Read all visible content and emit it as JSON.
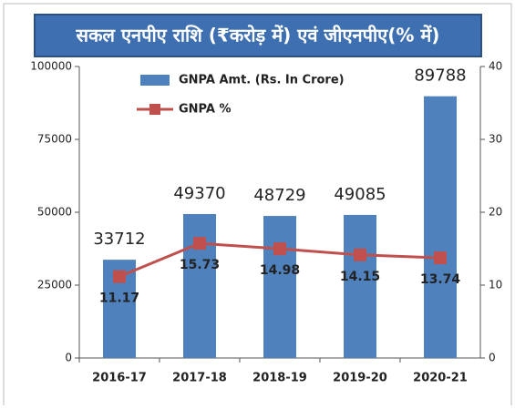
{
  "chart_data": {
    "type": "bar",
    "title": "सकल एनपीए राशि (₹करोड़ में) एवं जीएनपीए(% में)",
    "categories": [
      "2016-17",
      "2017-18",
      "2018-19",
      "2019-20",
      "2020-21"
    ],
    "series": [
      {
        "name": "GNPA Amt. (Rs. In Crore)",
        "color": "#4f81bd",
        "type": "bar",
        "values": [
          33712,
          49370,
          48729,
          49085,
          89788
        ]
      },
      {
        "name": "GNPA %",
        "color": "#c0504d",
        "type": "line",
        "axis": "y2",
        "values": [
          11.17,
          15.73,
          14.98,
          14.15,
          13.74
        ]
      }
    ],
    "ylim": [
      0,
      100000
    ],
    "yticks": [
      0,
      25000,
      50000,
      75000,
      100000
    ],
    "y2lim": [
      0,
      40
    ],
    "y2ticks": [
      0,
      10,
      20,
      30,
      40
    ],
    "grid": false,
    "legend": "upper left"
  }
}
